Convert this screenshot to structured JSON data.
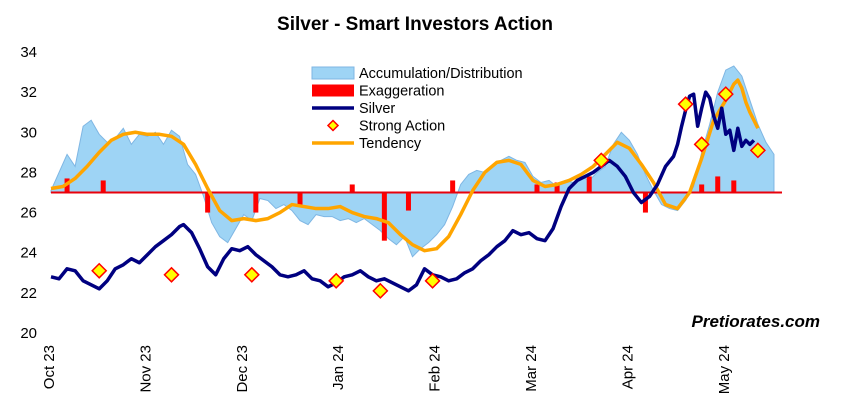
{
  "chart_data": {
    "type": "line",
    "title": "Silver - Smart Investors Action",
    "ylim": [
      20,
      34
    ],
    "y_ticks": [
      "20",
      "22",
      "24",
      "26",
      "28",
      "30",
      "32",
      "34"
    ],
    "x_labels": [
      "Oct 23",
      "Nov 23",
      "Dec 23",
      "Jan 24",
      "Feb 24",
      "Mar 24",
      "Apr 24",
      "May 24"
    ],
    "baseline": 27,
    "legend": [
      {
        "label": "Accumulation/Distribution",
        "kind": "area",
        "color": "#87CEEB"
      },
      {
        "label": "Exaggeration",
        "kind": "bar",
        "color": "#FF0000"
      },
      {
        "label": "Silver",
        "kind": "line",
        "color": "#000080"
      },
      {
        "label": "Strong Action",
        "kind": "marker",
        "color": "#FFFF00"
      },
      {
        "label": "Tendency",
        "kind": "line",
        "color": "#FFA500"
      }
    ],
    "watermark": "Pretiorates.com",
    "series": [
      {
        "name": "Silver",
        "color": "#000080",
        "points": [
          [
            0,
            22.8
          ],
          [
            2,
            22.7
          ],
          [
            4,
            23.2
          ],
          [
            6,
            23.1
          ],
          [
            8,
            22.6
          ],
          [
            10,
            22.4
          ],
          [
            12,
            22.2
          ],
          [
            14,
            22.6
          ],
          [
            16,
            23.2
          ],
          [
            18,
            23.4
          ],
          [
            20,
            23.7
          ],
          [
            22,
            23.5
          ],
          [
            24,
            23.9
          ],
          [
            26,
            24.3
          ],
          [
            28,
            24.6
          ],
          [
            30,
            24.9
          ],
          [
            32,
            25.3
          ],
          [
            33,
            25.4
          ],
          [
            35,
            25.0
          ],
          [
            37,
            24.2
          ],
          [
            39,
            23.3
          ],
          [
            41,
            22.9
          ],
          [
            43,
            23.7
          ],
          [
            45,
            24.2
          ],
          [
            47,
            24.1
          ],
          [
            49,
            24.3
          ],
          [
            51,
            23.9
          ],
          [
            53,
            23.6
          ],
          [
            55,
            23.3
          ],
          [
            57,
            22.9
          ],
          [
            59,
            22.8
          ],
          [
            61,
            22.9
          ],
          [
            63,
            23.1
          ],
          [
            65,
            22.7
          ],
          [
            67,
            22.6
          ],
          [
            69,
            22.3
          ],
          [
            71,
            22.5
          ],
          [
            73,
            22.8
          ],
          [
            75,
            22.9
          ],
          [
            77,
            23.1
          ],
          [
            79,
            22.8
          ],
          [
            81,
            22.6
          ],
          [
            83,
            22.7
          ],
          [
            85,
            22.5
          ],
          [
            87,
            22.3
          ],
          [
            89,
            22.1
          ],
          [
            91,
            22.4
          ],
          [
            93,
            23.2
          ],
          [
            95,
            22.9
          ],
          [
            97,
            22.8
          ],
          [
            99,
            22.6
          ],
          [
            101,
            22.7
          ],
          [
            103,
            23.0
          ],
          [
            105,
            23.2
          ],
          [
            107,
            23.6
          ],
          [
            109,
            23.9
          ],
          [
            111,
            24.3
          ],
          [
            113,
            24.6
          ],
          [
            115,
            25.1
          ],
          [
            117,
            24.9
          ],
          [
            119,
            25.0
          ],
          [
            121,
            24.7
          ],
          [
            123,
            24.6
          ],
          [
            125,
            25.2
          ],
          [
            127,
            26.3
          ],
          [
            129,
            27.2
          ],
          [
            131,
            27.6
          ],
          [
            133,
            27.8
          ],
          [
            135,
            28.0
          ],
          [
            137,
            28.3
          ],
          [
            139,
            28.6
          ],
          [
            141,
            28.3
          ],
          [
            143,
            27.8
          ],
          [
            145,
            27.0
          ],
          [
            147,
            26.5
          ],
          [
            149,
            26.8
          ],
          [
            151,
            27.4
          ],
          [
            153,
            28.3
          ],
          [
            155,
            28.8
          ],
          [
            156,
            29.4
          ],
          [
            157,
            30.3
          ],
          [
            158,
            31.1
          ],
          [
            159,
            31.8
          ],
          [
            160,
            31.9
          ],
          [
            161,
            30.3
          ],
          [
            162,
            31.2
          ],
          [
            163,
            32.0
          ],
          [
            164,
            31.7
          ],
          [
            165,
            30.8
          ],
          [
            166,
            30.2
          ],
          [
            167,
            31.2
          ],
          [
            168,
            29.9
          ],
          [
            169,
            30.1
          ],
          [
            170,
            29.1
          ],
          [
            171,
            30.2
          ],
          [
            172,
            29.3
          ],
          [
            173,
            29.6
          ],
          [
            174,
            29.4
          ],
          [
            175,
            29.6
          ]
        ]
      },
      {
        "name": "Tendency",
        "color": "#FFA500",
        "points": [
          [
            0,
            27.2
          ],
          [
            3,
            27.3
          ],
          [
            6,
            27.7
          ],
          [
            9,
            28.3
          ],
          [
            12,
            29.0
          ],
          [
            15,
            29.6
          ],
          [
            18,
            29.9
          ],
          [
            21,
            30.0
          ],
          [
            24,
            29.9
          ],
          [
            27,
            29.9
          ],
          [
            30,
            29.8
          ],
          [
            33,
            29.4
          ],
          [
            36,
            28.4
          ],
          [
            39,
            27.2
          ],
          [
            42,
            26.1
          ],
          [
            45,
            25.6
          ],
          [
            48,
            25.7
          ],
          [
            51,
            25.6
          ],
          [
            54,
            25.7
          ],
          [
            57,
            26.0
          ],
          [
            60,
            26.4
          ],
          [
            63,
            26.3
          ],
          [
            66,
            26.2
          ],
          [
            69,
            26.2
          ],
          [
            72,
            26.3
          ],
          [
            75,
            26.0
          ],
          [
            78,
            25.8
          ],
          [
            81,
            25.7
          ],
          [
            84,
            25.5
          ],
          [
            87,
            24.9
          ],
          [
            90,
            24.4
          ],
          [
            93,
            24.1
          ],
          [
            96,
            24.2
          ],
          [
            99,
            24.8
          ],
          [
            102,
            25.9
          ],
          [
            105,
            27.1
          ],
          [
            108,
            28.0
          ],
          [
            111,
            28.5
          ],
          [
            114,
            28.6
          ],
          [
            117,
            28.4
          ],
          [
            120,
            27.6
          ],
          [
            123,
            27.3
          ],
          [
            126,
            27.4
          ],
          [
            129,
            27.6
          ],
          [
            132,
            27.9
          ],
          [
            135,
            28.3
          ],
          [
            138,
            28.9
          ],
          [
            141,
            29.5
          ],
          [
            144,
            29.2
          ],
          [
            147,
            28.4
          ],
          [
            150,
            27.5
          ],
          [
            153,
            26.4
          ],
          [
            156,
            26.2
          ],
          [
            159,
            27.0
          ],
          [
            162,
            28.7
          ],
          [
            165,
            30.6
          ],
          [
            168,
            31.6
          ],
          [
            170,
            32.4
          ],
          [
            171,
            32.6
          ],
          [
            172,
            32.2
          ],
          [
            173,
            31.5
          ],
          [
            174,
            31.0
          ],
          [
            175,
            30.6
          ],
          [
            176,
            30.2
          ]
        ]
      },
      {
        "name": "Accumulation/Distribution",
        "color": "#87CEEB",
        "points": [
          [
            0,
            27.1
          ],
          [
            2,
            28.0
          ],
          [
            4,
            28.9
          ],
          [
            6,
            28.3
          ],
          [
            8,
            30.3
          ],
          [
            10,
            30.6
          ],
          [
            12,
            29.9
          ],
          [
            14,
            29.5
          ],
          [
            16,
            29.7
          ],
          [
            18,
            30.2
          ],
          [
            20,
            29.4
          ],
          [
            22,
            29.9
          ],
          [
            24,
            29.8
          ],
          [
            26,
            30.0
          ],
          [
            28,
            29.4
          ],
          [
            30,
            30.1
          ],
          [
            32,
            29.8
          ],
          [
            34,
            28.4
          ],
          [
            36,
            27.9
          ],
          [
            38,
            26.8
          ],
          [
            40,
            25.5
          ],
          [
            42,
            24.8
          ],
          [
            44,
            24.5
          ],
          [
            46,
            25.2
          ],
          [
            48,
            25.9
          ],
          [
            50,
            25.6
          ],
          [
            52,
            26.7
          ],
          [
            54,
            26.6
          ],
          [
            56,
            26.2
          ],
          [
            58,
            26.4
          ],
          [
            60,
            26.1
          ],
          [
            62,
            25.6
          ],
          [
            64,
            25.4
          ],
          [
            66,
            25.9
          ],
          [
            68,
            25.8
          ],
          [
            70,
            25.8
          ],
          [
            72,
            25.6
          ],
          [
            74,
            25.7
          ],
          [
            76,
            25.5
          ],
          [
            78,
            25.7
          ],
          [
            80,
            25.4
          ],
          [
            82,
            25.1
          ],
          [
            84,
            24.7
          ],
          [
            86,
            24.4
          ],
          [
            88,
            24.8
          ],
          [
            90,
            23.8
          ],
          [
            92,
            24.2
          ],
          [
            94,
            24.5
          ],
          [
            96,
            24.9
          ],
          [
            98,
            25.4
          ],
          [
            100,
            26.3
          ],
          [
            102,
            27.4
          ],
          [
            104,
            27.9
          ],
          [
            106,
            28.1
          ],
          [
            108,
            28.0
          ],
          [
            110,
            28.4
          ],
          [
            112,
            28.6
          ],
          [
            114,
            28.8
          ],
          [
            116,
            28.6
          ],
          [
            118,
            28.5
          ],
          [
            120,
            27.8
          ],
          [
            122,
            27.5
          ],
          [
            124,
            27.6
          ],
          [
            126,
            27.3
          ],
          [
            128,
            27.6
          ],
          [
            130,
            27.5
          ],
          [
            132,
            27.8
          ],
          [
            134,
            27.6
          ],
          [
            136,
            28.0
          ],
          [
            138,
            28.3
          ],
          [
            140,
            29.4
          ],
          [
            142,
            30.0
          ],
          [
            144,
            29.6
          ],
          [
            146,
            28.9
          ],
          [
            148,
            27.9
          ],
          [
            150,
            27.1
          ],
          [
            152,
            26.4
          ],
          [
            154,
            26.2
          ],
          [
            156,
            26.1
          ],
          [
            158,
            26.6
          ],
          [
            160,
            27.3
          ],
          [
            162,
            29.0
          ],
          [
            164,
            30.4
          ],
          [
            166,
            32.0
          ],
          [
            168,
            33.1
          ],
          [
            170,
            33.3
          ],
          [
            172,
            32.8
          ],
          [
            174,
            31.6
          ],
          [
            176,
            30.4
          ],
          [
            178,
            29.5
          ],
          [
            180,
            28.9
          ]
        ]
      }
    ],
    "exaggeration_bars": [
      [
        4,
        27.7
      ],
      [
        13,
        27.6
      ],
      [
        39,
        26.0
      ],
      [
        51,
        26.0
      ],
      [
        62,
        26.4
      ],
      [
        75,
        27.4
      ],
      [
        83,
        24.6
      ],
      [
        89,
        26.1
      ],
      [
        100,
        27.6
      ],
      [
        121,
        27.4
      ],
      [
        126,
        27.5
      ],
      [
        134,
        27.8
      ],
      [
        148,
        26.0
      ],
      [
        162,
        27.4
      ],
      [
        166,
        27.8
      ],
      [
        170,
        27.6
      ]
    ],
    "strong_action_points": [
      [
        12,
        23.1
      ],
      [
        30,
        22.9
      ],
      [
        50,
        22.9
      ],
      [
        71,
        22.6
      ],
      [
        82,
        22.1
      ],
      [
        95,
        22.6
      ],
      [
        137,
        28.6
      ],
      [
        158,
        31.4
      ],
      [
        162,
        29.4
      ],
      [
        168,
        31.9
      ],
      [
        176,
        29.1
      ]
    ]
  }
}
